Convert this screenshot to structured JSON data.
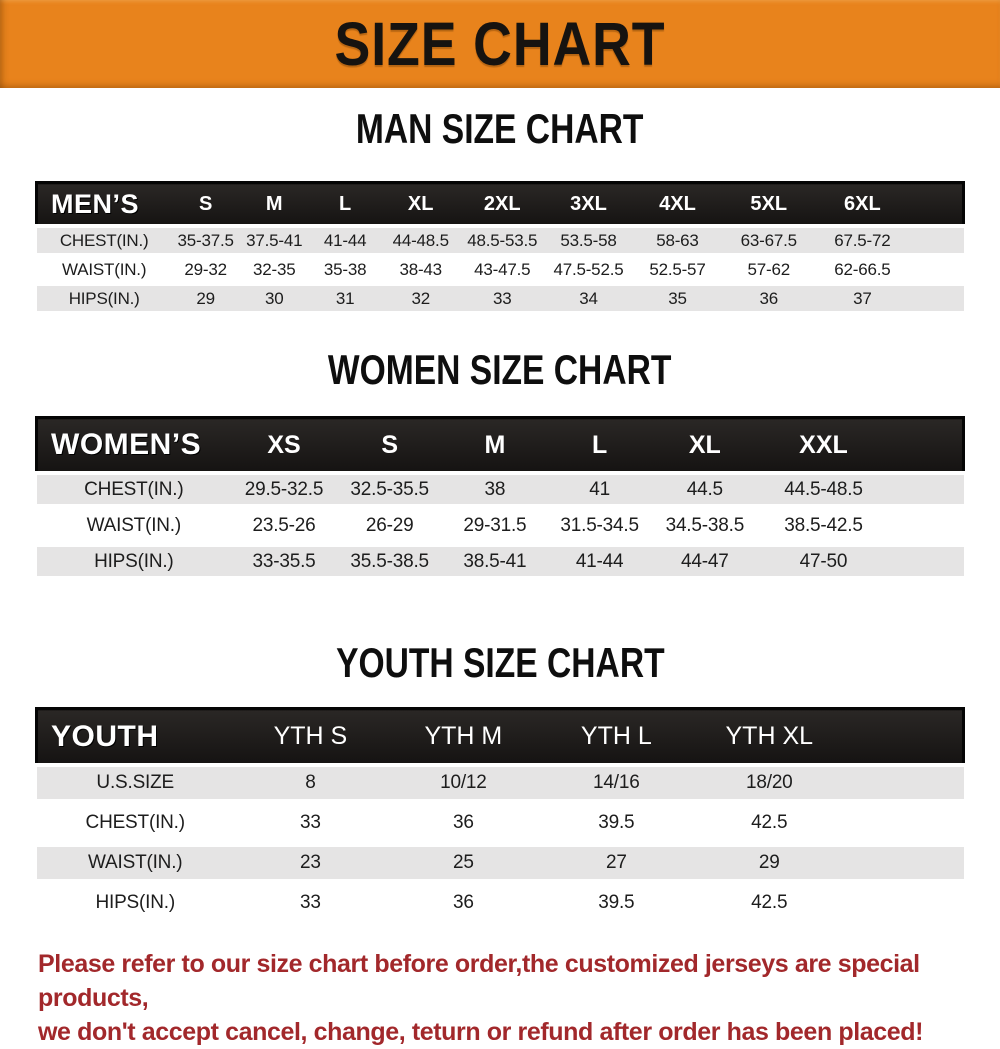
{
  "banner": {
    "title": "SIZE CHART",
    "bg_color": "#E8831C"
  },
  "chart_data": [
    {
      "type": "table",
      "title": "MAN SIZE CHART",
      "corner_label": "MEN’S",
      "columns": [
        "S",
        "M",
        "L",
        "XL",
        "2XL",
        "3XL",
        "4XL",
        "5XL",
        "6XL"
      ],
      "rows": [
        {
          "label": "CHEST(IN.)",
          "values": [
            "35-37.5",
            "37.5-41",
            "41-44",
            "44-48.5",
            "48.5-53.5",
            "53.5-58",
            "58-63",
            "63-67.5",
            "67.5-72"
          ]
        },
        {
          "label": "WAIST(IN.)",
          "values": [
            "29-32",
            "32-35",
            "35-38",
            "38-43",
            "43-47.5",
            "47.5-52.5",
            "52.5-57",
            "57-62",
            "62-66.5"
          ]
        },
        {
          "label": "HIPS(IN.)",
          "values": [
            "29",
            "30",
            "31",
            "32",
            "33",
            "34",
            "35",
            "36",
            "37"
          ]
        }
      ]
    },
    {
      "type": "table",
      "title": "WOMEN SIZE CHART",
      "corner_label": "WOMEN’S",
      "columns": [
        "XS",
        "S",
        "M",
        "L",
        "XL",
        "XXL"
      ],
      "rows": [
        {
          "label": "CHEST(IN.)",
          "values": [
            "29.5-32.5",
            "32.5-35.5",
            "38",
            "41",
            "44.5",
            "44.5-48.5"
          ]
        },
        {
          "label": "WAIST(IN.)",
          "values": [
            "23.5-26",
            "26-29",
            "29-31.5",
            "31.5-34.5",
            "34.5-38.5",
            "38.5-42.5"
          ]
        },
        {
          "label": "HIPS(IN.)",
          "values": [
            "33-35.5",
            "35.5-38.5",
            "38.5-41",
            "41-44",
            "44-47",
            "47-50"
          ]
        }
      ]
    },
    {
      "type": "table",
      "title": "YOUTH SIZE CHART",
      "corner_label": "YOUTH",
      "columns": [
        "YTH S",
        "YTH M",
        "YTH L",
        "YTH XL"
      ],
      "rows": [
        {
          "label": "U.S.SIZE",
          "values": [
            "8",
            "10/12",
            "14/16",
            "18/20"
          ]
        },
        {
          "label": "CHEST(IN.)",
          "values": [
            "33",
            "36",
            "39.5",
            "42.5"
          ]
        },
        {
          "label": "WAIST(IN.)",
          "values": [
            "23",
            "25",
            "27",
            "29"
          ]
        },
        {
          "label": "HIPS(IN.)",
          "values": [
            "33",
            "36",
            "39.5",
            "42.5"
          ]
        }
      ]
    }
  ],
  "footnote": {
    "line1": "Please refer to our size chart before order,the customized jerseys are special products,",
    "line2": "we don't accept cancel, change, teturn or refund after order has been placed!",
    "color": "#A2282B"
  }
}
